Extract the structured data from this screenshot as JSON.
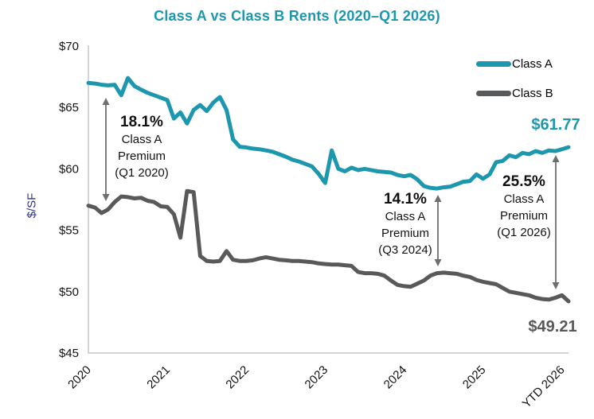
{
  "colors": {
    "class_a_teal": "#1C97AE",
    "class_b_gray": "#58595B",
    "title_teal": "#1C97AE",
    "ylabel_indigo": "#2E3192",
    "axis_gray": "#C4C6C8",
    "arrow_gray": "#6D6E70",
    "text_black": "#111111"
  },
  "chart_data": {
    "type": "line",
    "title": "Class A vs Class B Rents (2020–Q1 2026)",
    "ylabel": "$/SF",
    "xlabel": "",
    "ylim": [
      45,
      70
    ],
    "grid": false,
    "legend_position": "top-right",
    "x_unit": "monthly, Jan 2020 through Q1 2026",
    "y_ticks": [
      {
        "value": 70,
        "label": "$70"
      },
      {
        "value": 65,
        "label": "$65"
      },
      {
        "value": 60,
        "label": "$60"
      },
      {
        "value": 55,
        "label": "$55"
      },
      {
        "value": 50,
        "label": "$50"
      },
      {
        "value": 45,
        "label": "$45"
      }
    ],
    "x_ticks": [
      {
        "month_index": 0,
        "label": "2020"
      },
      {
        "month_index": 12,
        "label": "2021"
      },
      {
        "month_index": 24,
        "label": "2022"
      },
      {
        "month_index": 36,
        "label": "2023"
      },
      {
        "month_index": 48,
        "label": "2024"
      },
      {
        "month_index": 60,
        "label": "2025"
      },
      {
        "month_index": 72,
        "label": "YTD 2026"
      }
    ],
    "series": [
      {
        "name": "Class A",
        "color": "#1C97AE",
        "values": [
          67.0,
          66.95,
          66.85,
          66.8,
          66.85,
          66.0,
          67.4,
          66.75,
          66.45,
          66.2,
          66.0,
          65.8,
          65.6,
          64.1,
          64.6,
          63.7,
          64.8,
          65.2,
          64.7,
          65.4,
          65.85,
          64.8,
          62.4,
          61.8,
          61.75,
          61.65,
          61.6,
          61.5,
          61.4,
          61.2,
          61.0,
          60.75,
          60.6,
          60.4,
          60.2,
          59.6,
          58.85,
          61.5,
          60.0,
          59.8,
          60.1,
          59.9,
          60.0,
          59.9,
          59.8,
          59.75,
          59.7,
          59.5,
          59.4,
          59.5,
          59.15,
          58.6,
          58.45,
          58.4,
          58.5,
          58.55,
          58.75,
          58.95,
          59.0,
          59.55,
          59.2,
          59.55,
          60.55,
          60.65,
          61.1,
          60.95,
          61.3,
          61.2,
          61.45,
          61.3,
          61.5,
          61.45,
          61.6,
          61.77
        ]
      },
      {
        "name": "Class B",
        "color": "#58595B",
        "values": [
          57.0,
          56.85,
          56.4,
          56.7,
          57.3,
          57.75,
          57.7,
          57.6,
          57.65,
          57.4,
          57.3,
          56.95,
          56.9,
          56.3,
          54.4,
          58.2,
          58.1,
          52.9,
          52.5,
          52.45,
          52.5,
          53.3,
          52.6,
          52.5,
          52.5,
          52.55,
          52.7,
          52.8,
          52.7,
          52.6,
          52.55,
          52.5,
          52.5,
          52.45,
          52.4,
          52.3,
          52.25,
          52.2,
          52.2,
          52.15,
          52.1,
          51.6,
          51.5,
          51.5,
          51.45,
          51.3,
          50.9,
          50.55,
          50.45,
          50.4,
          50.65,
          50.9,
          51.3,
          51.5,
          51.55,
          51.5,
          51.45,
          51.3,
          51.2,
          50.95,
          50.8,
          50.7,
          50.6,
          50.3,
          50.0,
          49.9,
          49.8,
          49.7,
          49.5,
          49.4,
          49.35,
          49.5,
          49.7,
          49.21
        ]
      }
    ],
    "end_labels": [
      {
        "series": "Class A",
        "text": "$61.77",
        "color": "#1C97AE"
      },
      {
        "series": "Class B",
        "text": "$49.21",
        "color": "#58595B"
      }
    ],
    "annotations": [
      {
        "pct": "18.1%",
        "line1": "Class A",
        "line2": "Premium",
        "line3": "(Q1 2020)"
      },
      {
        "pct": "14.1%",
        "line1": "Class A",
        "line2": "Premium",
        "line3": "(Q3 2024)"
      },
      {
        "pct": "25.5%",
        "line1": "Class A",
        "line2": "Premium",
        "line3": "(Q1 2026)"
      }
    ]
  }
}
